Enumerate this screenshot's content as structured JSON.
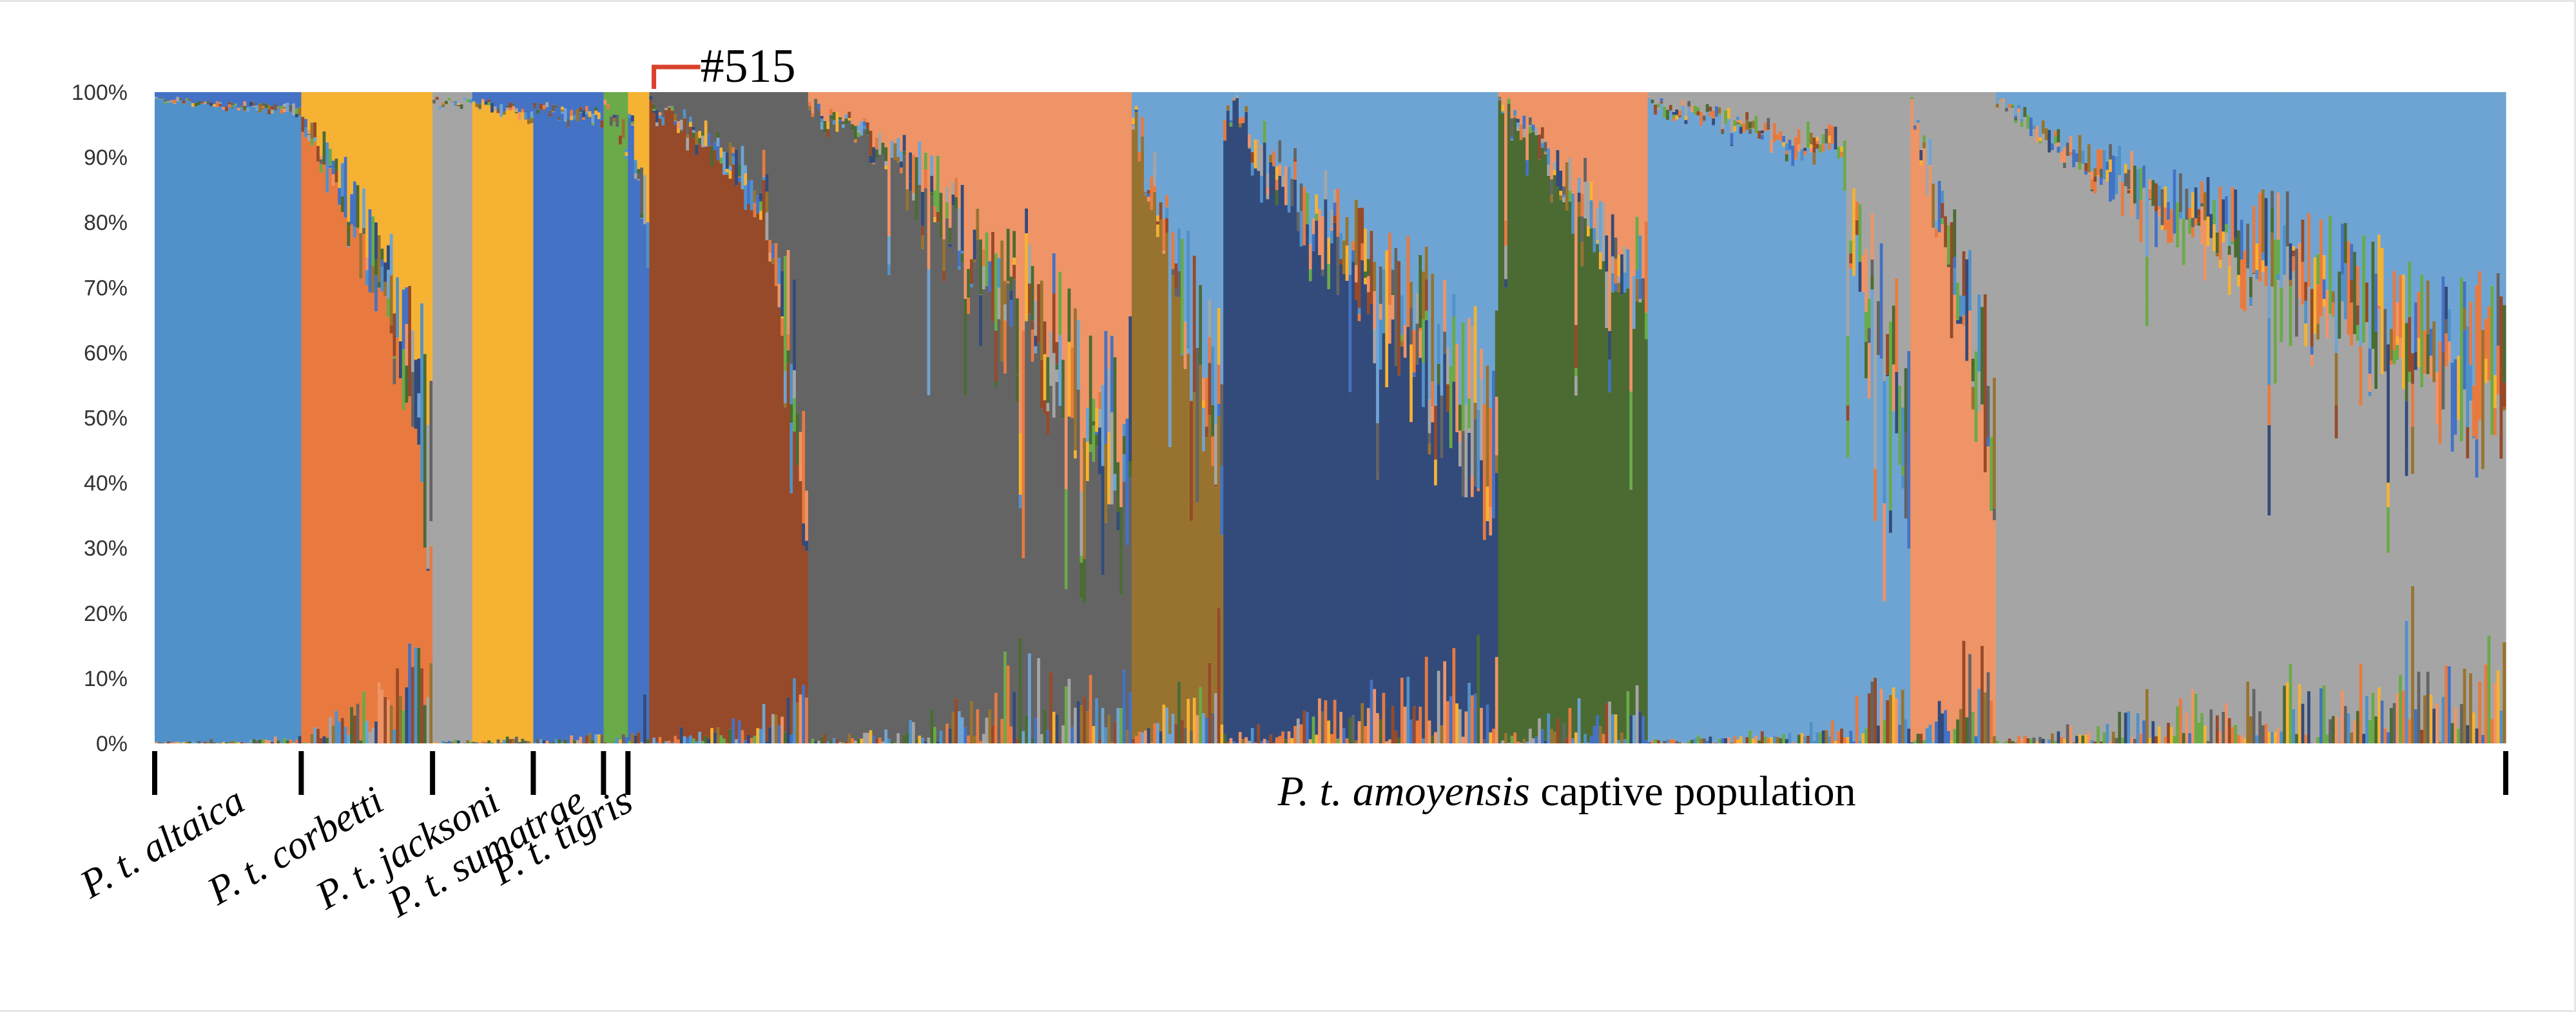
{
  "chart_data": {
    "type": "bar",
    "subtype": "stacked-admixture",
    "title": "",
    "xlabel": "",
    "ylabel": "",
    "ylim": [
      0,
      100
    ],
    "y_tick_labels": [
      "0%",
      "10%",
      "20%",
      "30%",
      "40%",
      "50%",
      "60%",
      "70%",
      "80%",
      "90%",
      "100%"
    ],
    "grid": false,
    "legend": "none",
    "groups": [
      {
        "label": "P. t. altaica",
        "start": 0,
        "end": 48
      },
      {
        "label": "P. t. corbetti",
        "start": 48,
        "end": 91
      },
      {
        "label": "P. t. jacksoni",
        "start": 91,
        "end": 124
      },
      {
        "label": "P. t. sumatrae",
        "start": 124,
        "end": 147
      },
      {
        "label": "P. t. tigris",
        "start": 147,
        "end": 155
      }
    ],
    "population": {
      "label_italic": "P. t. amoyensis",
      "label_rest": " captive population",
      "start": 155,
      "end": 770
    },
    "annotation": {
      "text": "#515",
      "position": 163,
      "color": "#d9412b"
    },
    "n_individuals": 770,
    "clusters": [
      {
        "name": "",
        "color": "#5191c9"
      },
      {
        "name": "",
        "color": "#e87a40"
      },
      {
        "name": "",
        "color": "#a5a5a5"
      },
      {
        "name": "",
        "color": "#f5b233"
      },
      {
        "name": "",
        "color": "#4472c4"
      },
      {
        "name": "",
        "color": "#6aaa48"
      },
      {
        "name": "",
        "color": "#964a29"
      },
      {
        "name": "",
        "color": "#646464"
      },
      {
        "name": "",
        "color": "#987330"
      },
      {
        "name": "",
        "color": "#334b7b"
      },
      {
        "name": "",
        "color": "#4b6b33"
      },
      {
        "name": "",
        "color": "#6ea4d3"
      },
      {
        "name": "",
        "color": "#ee9466"
      }
    ],
    "blocks": [
      {
        "start": 0,
        "end": 48,
        "main": 0,
        "from": 98.5,
        "to": 96,
        "second": 4,
        "noise": 1.5
      },
      {
        "start": 48,
        "end": 76,
        "main": 1,
        "from": 95,
        "to": 60,
        "second": 3,
        "noise": 4
      },
      {
        "start": 76,
        "end": 91,
        "main": 1,
        "from": 60,
        "to": 18,
        "second": 3,
        "noise": 4
      },
      {
        "start": 91,
        "end": 104,
        "main": 2,
        "from": 98,
        "to": 98,
        "second": 2,
        "noise": 1.5
      },
      {
        "start": 104,
        "end": 124,
        "main": 3,
        "from": 98,
        "to": 95,
        "second": 4,
        "noise": 1.5
      },
      {
        "start": 124,
        "end": 147,
        "main": 4,
        "from": 97,
        "to": 94,
        "second": 4,
        "noise": 2
      },
      {
        "start": 147,
        "end": 155,
        "main": 5,
        "from": 97,
        "to": 90,
        "second": 5,
        "noise": 3
      },
      {
        "start": 155,
        "end": 162,
        "main": 4,
        "from": 95,
        "to": 70,
        "second": 3,
        "noise": 6
      },
      {
        "start": 162,
        "end": 200,
        "main": 6,
        "from": 98,
        "to": 80,
        "second": 7,
        "noise": 5
      },
      {
        "start": 200,
        "end": 214,
        "main": 6,
        "from": 80,
        "to": 20,
        "second": 7,
        "noise": 8
      },
      {
        "start": 214,
        "end": 240,
        "main": 7,
        "from": 97,
        "to": 88,
        "second": 12,
        "noise": 6
      },
      {
        "start": 240,
        "end": 320,
        "main": 7,
        "from": 88,
        "to": 30,
        "second": 12,
        "noise": 12
      },
      {
        "start": 320,
        "end": 350,
        "main": 8,
        "from": 95,
        "to": 30,
        "second": 11,
        "noise": 8
      },
      {
        "start": 350,
        "end": 440,
        "main": 9,
        "from": 97,
        "to": 30,
        "second": 11,
        "noise": 12
      },
      {
        "start": 440,
        "end": 489,
        "main": 10,
        "from": 98,
        "to": 60,
        "second": 12,
        "noise": 8
      },
      {
        "start": 489,
        "end": 550,
        "main": 11,
        "from": 98,
        "to": 88,
        "second": 2,
        "noise": 4
      },
      {
        "start": 550,
        "end": 575,
        "main": 11,
        "from": 88,
        "to": 30,
        "second": 2,
        "noise": 10
      },
      {
        "start": 575,
        "end": 603,
        "main": 12,
        "from": 98,
        "to": 30,
        "second": 2,
        "noise": 8
      },
      {
        "start": 603,
        "end": 648,
        "main": 2,
        "from": 98,
        "to": 80,
        "second": 11,
        "noise": 3
      },
      {
        "start": 648,
        "end": 770,
        "main": 2,
        "from": 80,
        "to": 40,
        "second": 11,
        "noise": 10
      }
    ]
  }
}
